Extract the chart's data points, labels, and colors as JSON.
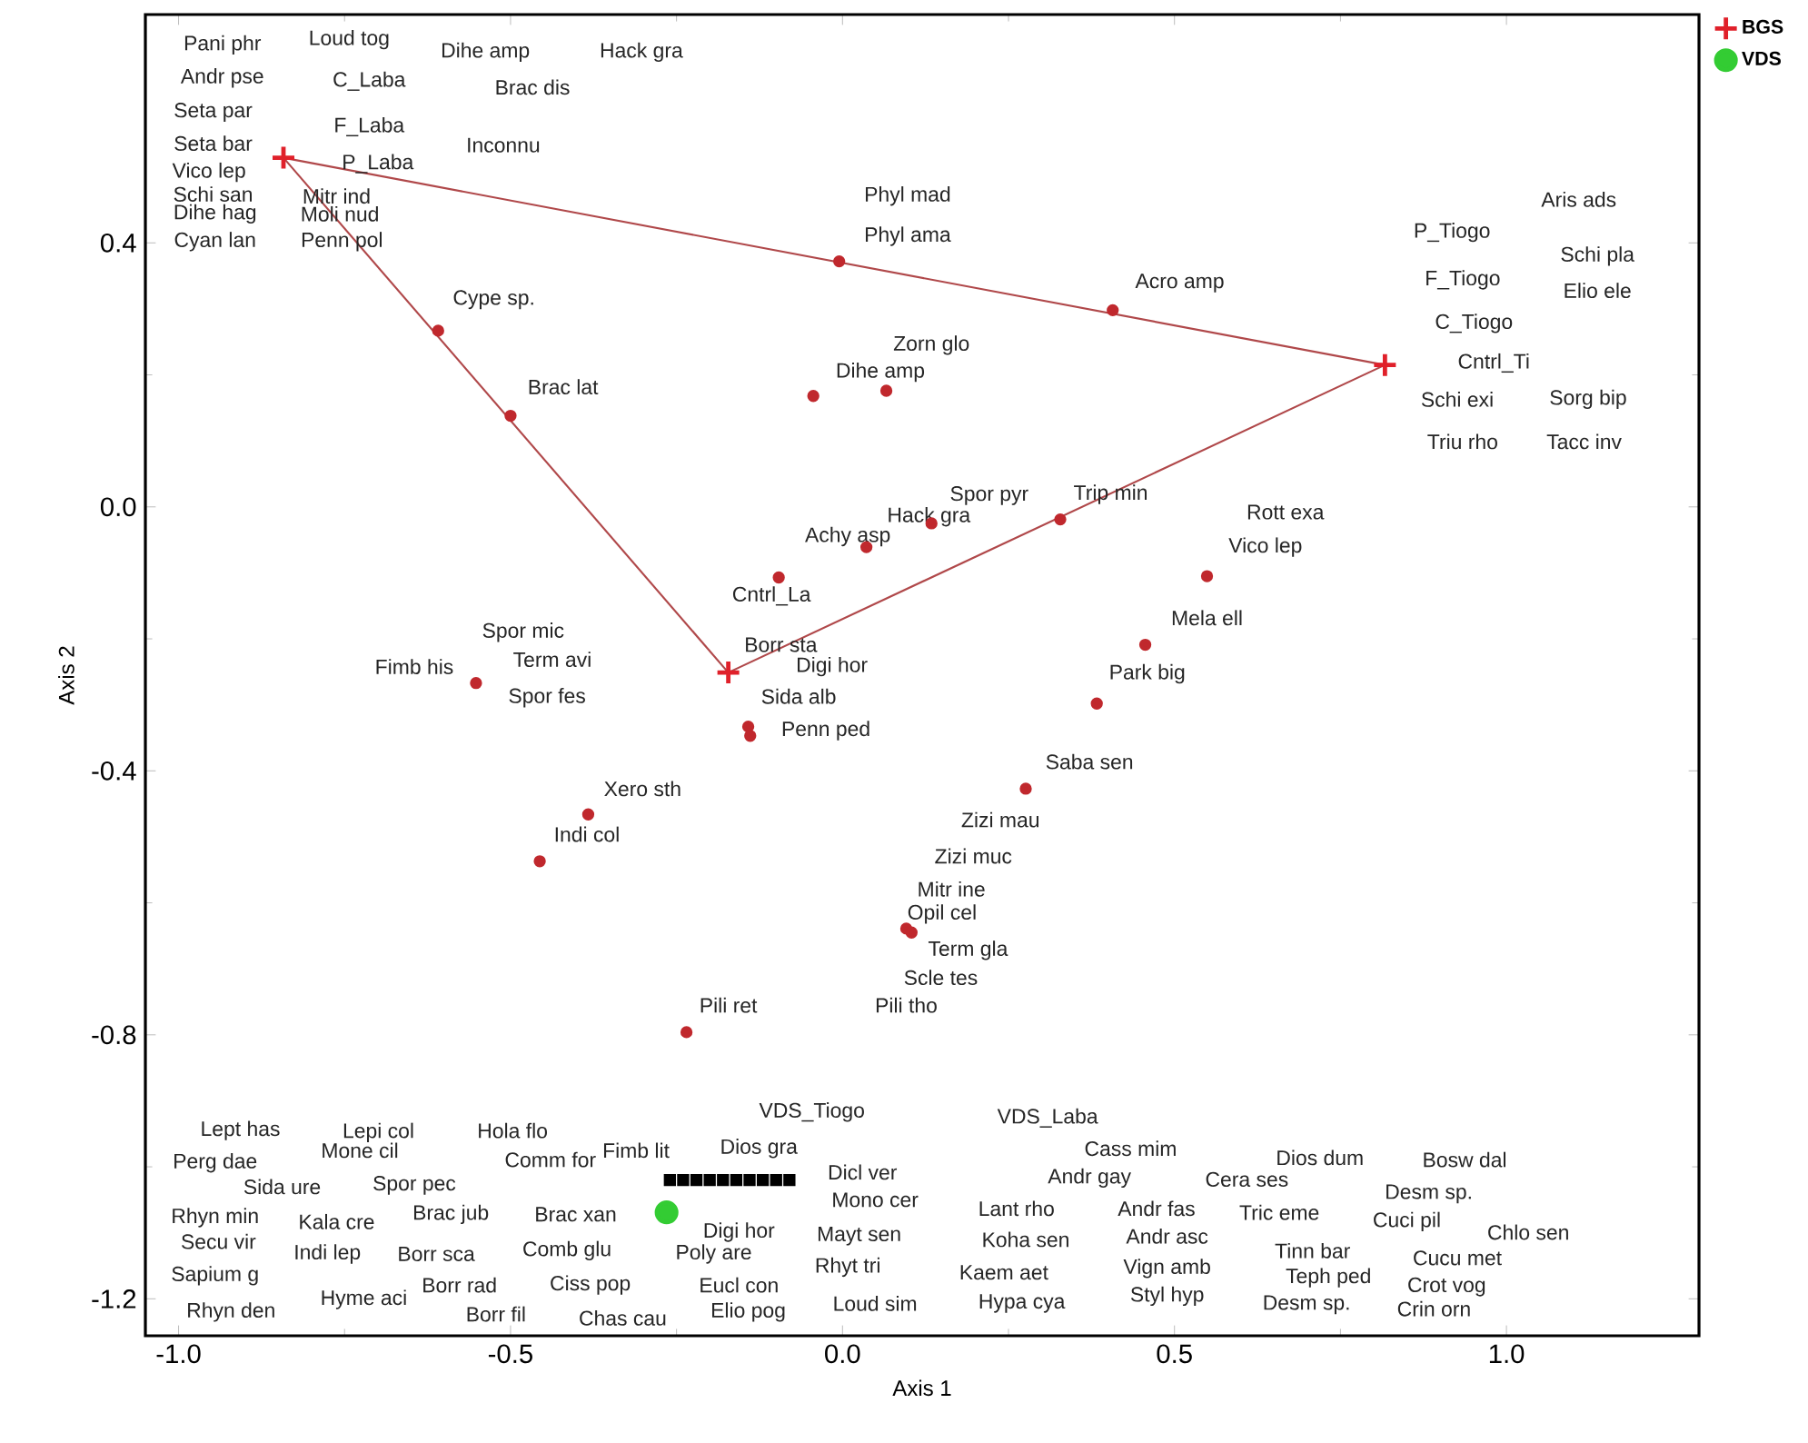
{
  "chart_data": {
    "type": "scatter",
    "xlabel": "Axis 1",
    "ylabel": "Axis 2",
    "xlim": [
      -1.05,
      1.29
    ],
    "ylim": [
      -1.256,
      0.746
    ],
    "xticks": [
      {
        "value": -1.0,
        "label": "-1.0"
      },
      {
        "value": -0.5,
        "label": "-0.5"
      },
      {
        "value": 0.0,
        "label": "0.0"
      },
      {
        "value": 0.5,
        "label": "0.5"
      },
      {
        "value": 1.0,
        "label": "1.0"
      }
    ],
    "yticks": [
      {
        "value": -1.2,
        "label": "-1.2"
      },
      {
        "value": -0.8,
        "label": "-0.8"
      },
      {
        "value": -0.4,
        "label": "-0.4"
      },
      {
        "value": 0.0,
        "label": "0.0"
      },
      {
        "value": 0.4,
        "label": "0.4"
      }
    ],
    "legend": "top right",
    "series": [
      {
        "type": "line",
        "color": "#b0484a",
        "marker": "none",
        "x": [
          -0.842,
          0.817
        ],
        "values": [
          0.529,
          0.215
        ]
      },
      {
        "type": "line",
        "color": "#b0484a",
        "marker": "none",
        "x": [
          -0.172,
          0.817
        ],
        "values": [
          -0.251,
          0.215
        ]
      },
      {
        "type": "line",
        "color": "#b0484a",
        "marker": "none",
        "x": [
          -0.842,
          -0.172
        ],
        "values": [
          0.529,
          -0.251
        ]
      },
      {
        "color": "#c0282d",
        "marker": "circle",
        "x": [
          -0.609,
          -0.5,
          -0.005,
          0.407,
          -0.044,
          0.066,
          0.328,
          0.134,
          0.036,
          -0.096,
          0.549,
          0.456,
          0.383,
          0.276,
          -0.142,
          -0.139,
          0.096,
          0.104,
          -0.552,
          -0.383,
          -0.456,
          -0.235
        ],
        "values": [
          0.267,
          0.138,
          0.372,
          0.298,
          0.168,
          0.176,
          -0.019,
          -0.025,
          -0.061,
          -0.107,
          -0.105,
          -0.209,
          -0.298,
          -0.427,
          -0.333,
          -0.347,
          -0.639,
          -0.645,
          -0.267,
          -0.466,
          -0.537,
          -0.796
        ]
      },
      {
        "color": "#000000",
        "marker": "square",
        "x": [
          -0.26,
          -0.24,
          -0.22,
          -0.2,
          -0.18,
          -0.16,
          -0.14,
          -0.12,
          -0.1,
          -0.08
        ],
        "values": [
          -1.02,
          -1.02,
          -1.02,
          -1.02,
          -1.02,
          -1.02,
          -1.02,
          -1.02,
          -1.02,
          -1.02
        ]
      },
      {
        "name": "BGS",
        "color": "#e0202a",
        "marker": "cross",
        "x": [
          -0.842,
          0.817,
          -0.172
        ],
        "values": [
          0.529,
          0.215,
          -0.251
        ]
      },
      {
        "name": "VDS",
        "color": "#33cc33",
        "marker": "circle",
        "x": [
          -0.265
        ],
        "values": [
          -1.069
        ]
      }
    ],
    "annotations": [
      "Pani phr",
      "Loud tog",
      "Dihe amp",
      "Hack gra",
      "Andr pse",
      "C_Laba",
      "Brac dis",
      "Seta par",
      "F_Laba",
      "Seta bar",
      "Inconnu",
      "Vico lep",
      "P_Laba",
      "Schi san",
      "Mitr ind",
      "Dihe hag",
      "Moli nud",
      "Cyan lan",
      "Penn pol",
      "Cype sp.",
      "Brac lat",
      "Phyl mad",
      "Phyl ama",
      "Acro amp",
      "Zorn glo",
      "Dihe amp",
      "Aris ads",
      "P_Tiogo",
      "Schi pla",
      "F_Tiogo",
      "Elio ele",
      "C_Tiogo",
      "Cntrl_Ti",
      "Schi exi",
      "Sorg bip",
      "Triu rho",
      "Tacc inv",
      "Spor pyr",
      "Trip min",
      "Hack gra",
      "Achy asp",
      "Cntrl_La",
      "Rott exa",
      "Vico lep",
      "Mela ell",
      "Park big",
      "Spor mic",
      "Fimb his",
      "Term avi",
      "Spor fes",
      "Borr sta",
      "Digi hor",
      "Sida alb",
      "Penn ped",
      "Saba sen",
      "Xero sth",
      "Indi col",
      "Zizi mau",
      "Zizi muc",
      "Mitr ine",
      "Opil cel",
      "Term gla",
      "Scle tes",
      "Pili tho",
      "Pili ret",
      "VDS_Tiogo",
      "Lept has",
      "Lepi col",
      "Hola flo",
      "Fimb lit",
      "Dios gra",
      "Perg dae",
      "Mone cil",
      "Comm for",
      "Sida ure",
      "Spor pec",
      "Dicl ver",
      "Rhyn min",
      "Kala cre",
      "Brac jub",
      "Brac xan",
      "Mono cer",
      "Secu vir",
      "Indi lep",
      "Borr sca",
      "Comb glu",
      "Digi hor",
      "Poly are",
      "Mayt sen",
      "Sapium g",
      "Hyme aci",
      "Borr rad",
      "Ciss pop",
      "Eucl con",
      "Rhyt tri",
      "Rhyn den",
      "Borr fil",
      "Chas cau",
      "Elio pog",
      "Loud sim",
      "VDS_Laba",
      "Cass mim",
      "Dios dum",
      "Bosw dal",
      "Andr gay",
      "Cera ses",
      "Desm sp.",
      "Lant rho",
      "Andr fas",
      "Tric eme",
      "Cuci pil",
      "Chlo sen",
      "Koha sen",
      "Andr asc",
      "Tinn bar",
      "Cucu met",
      "Kaem aet",
      "Vign amb",
      "Teph ped",
      "Crot vog",
      "Hypa cya",
      "Styl hyp",
      "Desm sp.",
      "Crin orn"
    ]
  }
}
